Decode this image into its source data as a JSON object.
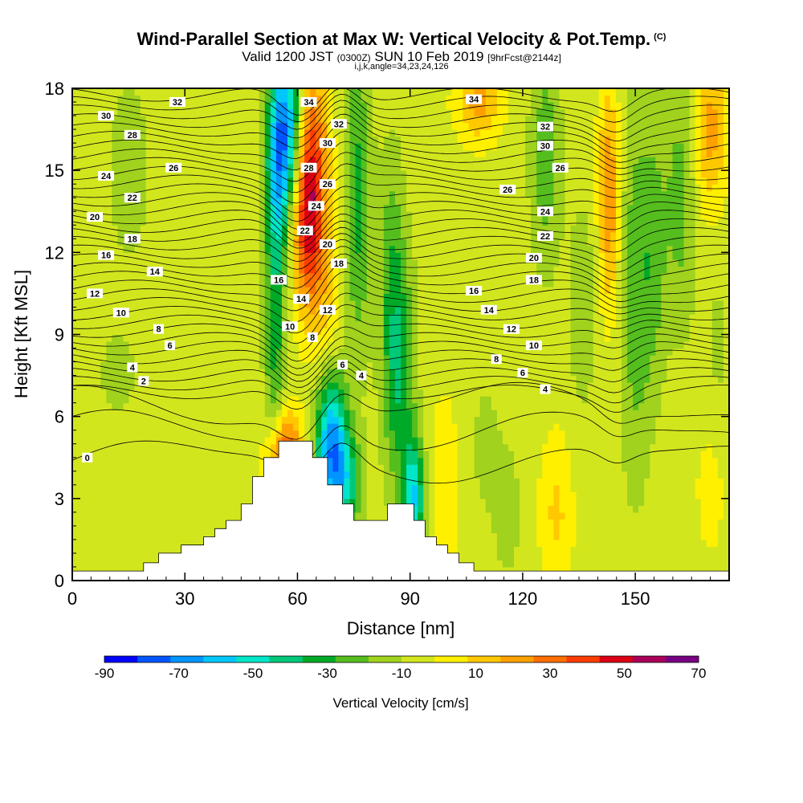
{
  "title": {
    "main": "Wind-Parallel Section at Max W: Vertical Velocity & Pot.Temp.",
    "main_suffix": "(C)",
    "valid_prefix": "Valid 1200 JST",
    "valid_utc": "(0300Z)",
    "valid_date": "SUN 10 Feb 2019",
    "forecast": "[9hrFcst@2144z]",
    "indices": "i,j,k,angle=34,23,24,126"
  },
  "chart_data": {
    "type": "heatmap",
    "xlabel": "Distance [nm]",
    "ylabel": "Height [Kft MSL]",
    "xlim": [
      0,
      175
    ],
    "ylim": [
      0,
      18
    ],
    "xticks": [
      "0",
      "30",
      "60",
      "90",
      "120",
      "150"
    ],
    "yticks": [
      "0",
      "3",
      "6",
      "9",
      "12",
      "15",
      "18"
    ],
    "colorbar": {
      "label": "Vertical Velocity [cm/s]",
      "min": -90,
      "max": 70,
      "step": 10,
      "ticks": [
        "-90",
        "-70",
        "-50",
        "-30",
        "-10",
        "10",
        "30",
        "50",
        "70"
      ],
      "colors": [
        "#0000ff",
        "#0055ff",
        "#0095ff",
        "#00c8ff",
        "#00e6c8",
        "#00c878",
        "#00aa28",
        "#55be1e",
        "#a0d21e",
        "#d2e61e",
        "#fff000",
        "#ffc800",
        "#ffa000",
        "#ff6e00",
        "#ff3c00",
        "#dc0014",
        "#aa005a",
        "#780082"
      ]
    },
    "terrain_profile": [
      [
        0,
        0.35
      ],
      [
        19,
        0.35
      ],
      [
        19,
        0.65
      ],
      [
        23,
        0.65
      ],
      [
        23,
        1.0
      ],
      [
        29,
        1.0
      ],
      [
        29,
        1.3
      ],
      [
        35,
        1.3
      ],
      [
        35,
        1.6
      ],
      [
        38,
        1.6
      ],
      [
        38,
        1.9
      ],
      [
        41,
        1.9
      ],
      [
        41,
        2.2
      ],
      [
        45,
        2.2
      ],
      [
        45,
        2.8
      ],
      [
        48,
        2.8
      ],
      [
        48,
        3.8
      ],
      [
        51,
        3.8
      ],
      [
        51,
        4.5
      ],
      [
        55,
        4.5
      ],
      [
        55,
        5.1
      ],
      [
        64,
        5.1
      ],
      [
        64,
        4.5
      ],
      [
        68,
        4.5
      ],
      [
        68,
        3.5
      ],
      [
        72,
        3.5
      ],
      [
        72,
        2.8
      ],
      [
        75,
        2.8
      ],
      [
        75,
        2.2
      ],
      [
        84,
        2.2
      ],
      [
        84,
        2.8
      ],
      [
        91,
        2.8
      ],
      [
        91,
        2.2
      ],
      [
        94,
        2.2
      ],
      [
        94,
        1.6
      ],
      [
        97,
        1.6
      ],
      [
        97,
        1.3
      ],
      [
        100,
        1.3
      ],
      [
        100,
        1.0
      ],
      [
        103,
        1.0
      ],
      [
        103,
        0.65
      ],
      [
        107,
        0.65
      ],
      [
        107,
        0.35
      ],
      [
        175,
        0.35
      ]
    ],
    "w_features": [
      {
        "x": 55,
        "y": 15.5,
        "sx": 2.5,
        "sy": 2.5,
        "w": -60
      },
      {
        "x": 54,
        "y": 9.5,
        "sx": 2.0,
        "sy": 3.5,
        "w": -30
      },
      {
        "x": 58,
        "y": 17.0,
        "sx": 2.5,
        "sy": 2.0,
        "w": -40
      },
      {
        "x": 64,
        "y": 15.0,
        "sx": 3.0,
        "sy": 2.5,
        "w": 50
      },
      {
        "x": 62,
        "y": 12.5,
        "sx": 3.0,
        "sy": 2.0,
        "w": 30
      },
      {
        "x": 67,
        "y": 10.0,
        "sx": 3.0,
        "sy": 2.0,
        "w": 15
      },
      {
        "x": 57,
        "y": 4.8,
        "sx": 3.0,
        "sy": 1.0,
        "w": 45
      },
      {
        "x": 53,
        "y": 3.0,
        "sx": 2.0,
        "sy": 1.0,
        "w": 35
      },
      {
        "x": 69,
        "y": 5.0,
        "sx": 3.0,
        "sy": 1.8,
        "w": -70
      },
      {
        "x": 73,
        "y": 3.5,
        "sx": 3.0,
        "sy": 1.3,
        "w": -35
      },
      {
        "x": 76,
        "y": 14.0,
        "sx": 2.5,
        "sy": 4.0,
        "w": -30
      },
      {
        "x": 87,
        "y": 7.5,
        "sx": 3.0,
        "sy": 3.0,
        "w": -35
      },
      {
        "x": 91,
        "y": 3.0,
        "sx": 2.0,
        "sy": 1.5,
        "w": -55
      },
      {
        "x": 85,
        "y": 12.0,
        "sx": 2.5,
        "sy": 3.0,
        "w": -18
      },
      {
        "x": 99,
        "y": 3.5,
        "sx": 3.0,
        "sy": 2.5,
        "w": 10
      },
      {
        "x": 108,
        "y": 17.5,
        "sx": 4.0,
        "sy": 1.0,
        "w": 28
      },
      {
        "x": 116,
        "y": 2.5,
        "sx": 3.0,
        "sy": 2.0,
        "w": -10
      },
      {
        "x": 126,
        "y": 15.5,
        "sx": 3.0,
        "sy": 3.0,
        "w": -22
      },
      {
        "x": 129,
        "y": 2.5,
        "sx": 3.0,
        "sy": 2.0,
        "w": 16
      },
      {
        "x": 143,
        "y": 14.0,
        "sx": 2.0,
        "sy": 2.8,
        "w": 35
      },
      {
        "x": 150,
        "y": 10.5,
        "sx": 3.0,
        "sy": 5.0,
        "w": -22
      },
      {
        "x": 155,
        "y": 12.0,
        "sx": 2.5,
        "sy": 3.5,
        "w": -18
      },
      {
        "x": 162,
        "y": 14.0,
        "sx": 3.0,
        "sy": 3.5,
        "w": -20
      },
      {
        "x": 170,
        "y": 16.5,
        "sx": 3.0,
        "sy": 2.0,
        "w": 28
      },
      {
        "x": 172,
        "y": 8.5,
        "sx": 3.0,
        "sy": 2.5,
        "w": -8
      },
      {
        "x": 170,
        "y": 3.5,
        "sx": 3.0,
        "sy": 2.0,
        "w": 8
      },
      {
        "x": 15,
        "y": 15.0,
        "sx": 5.0,
        "sy": 3.0,
        "w": -10
      },
      {
        "x": 12,
        "y": 7.5,
        "sx": 5.0,
        "sy": 1.5,
        "w": -8
      },
      {
        "x": 40,
        "y": 10.0,
        "sx": 4.0,
        "sy": 2.0,
        "w": -6
      },
      {
        "x": 100,
        "y": 12.5,
        "sx": 4.0,
        "sy": 2.0,
        "w": -6
      },
      {
        "x": 110,
        "y": 5.0,
        "sx": 3.0,
        "sy": 2.0,
        "w": -9
      },
      {
        "x": 136,
        "y": 10.0,
        "sx": 3.0,
        "sy": 3.0,
        "w": -12
      }
    ],
    "isentrope_labels": [
      {
        "v": "0",
        "x": 4,
        "y": 4.5
      },
      {
        "v": "2",
        "x": 19,
        "y": 7.3
      },
      {
        "v": "4",
        "x": 16,
        "y": 7.8
      },
      {
        "v": "6",
        "x": 26,
        "y": 8.6
      },
      {
        "v": "8",
        "x": 23,
        "y": 9.2
      },
      {
        "v": "10",
        "x": 13,
        "y": 9.8
      },
      {
        "v": "12",
        "x": 6,
        "y": 10.5
      },
      {
        "v": "14",
        "x": 22,
        "y": 11.3
      },
      {
        "v": "16",
        "x": 9,
        "y": 11.9
      },
      {
        "v": "18",
        "x": 16,
        "y": 12.5
      },
      {
        "v": "20",
        "x": 6,
        "y": 13.3
      },
      {
        "v": "22",
        "x": 16,
        "y": 14.0
      },
      {
        "v": "24",
        "x": 9,
        "y": 14.8
      },
      {
        "v": "26",
        "x": 27,
        "y": 15.1
      },
      {
        "v": "28",
        "x": 16,
        "y": 16.3
      },
      {
        "v": "30",
        "x": 9,
        "y": 17.0
      },
      {
        "v": "32",
        "x": 28,
        "y": 17.5
      },
      {
        "v": "34",
        "x": 63,
        "y": 17.5
      },
      {
        "v": "32",
        "x": 71,
        "y": 16.7
      },
      {
        "v": "30",
        "x": 68,
        "y": 16.0
      },
      {
        "v": "28",
        "x": 63,
        "y": 15.1
      },
      {
        "v": "26",
        "x": 68,
        "y": 14.5
      },
      {
        "v": "24",
        "x": 65,
        "y": 13.7
      },
      {
        "v": "22",
        "x": 62,
        "y": 12.8
      },
      {
        "v": "20",
        "x": 68,
        "y": 12.3
      },
      {
        "v": "18",
        "x": 71,
        "y": 11.6
      },
      {
        "v": "16",
        "x": 55,
        "y": 11.0
      },
      {
        "v": "14",
        "x": 61,
        "y": 10.3
      },
      {
        "v": "12",
        "x": 68,
        "y": 9.9
      },
      {
        "v": "10",
        "x": 58,
        "y": 9.3
      },
      {
        "v": "8",
        "x": 64,
        "y": 8.9
      },
      {
        "v": "6",
        "x": 72,
        "y": 7.9
      },
      {
        "v": "4",
        "x": 77,
        "y": 7.5
      },
      {
        "v": "34",
        "x": 107,
        "y": 17.6
      },
      {
        "v": "32",
        "x": 126,
        "y": 16.6
      },
      {
        "v": "30",
        "x": 126,
        "y": 15.9
      },
      {
        "v": "26",
        "x": 130,
        "y": 15.1
      },
      {
        "v": "26",
        "x": 116,
        "y": 14.3
      },
      {
        "v": "24",
        "x": 126,
        "y": 13.5
      },
      {
        "v": "22",
        "x": 126,
        "y": 12.6
      },
      {
        "v": "20",
        "x": 123,
        "y": 11.8
      },
      {
        "v": "18",
        "x": 123,
        "y": 11.0
      },
      {
        "v": "16",
        "x": 107,
        "y": 10.6
      },
      {
        "v": "14",
        "x": 111,
        "y": 9.9
      },
      {
        "v": "12",
        "x": 117,
        "y": 9.2
      },
      {
        "v": "10",
        "x": 123,
        "y": 8.6
      },
      {
        "v": "8",
        "x": 113,
        "y": 8.1
      },
      {
        "v": "6",
        "x": 120,
        "y": 7.6
      },
      {
        "v": "4",
        "x": 126,
        "y": 7.0
      }
    ]
  }
}
